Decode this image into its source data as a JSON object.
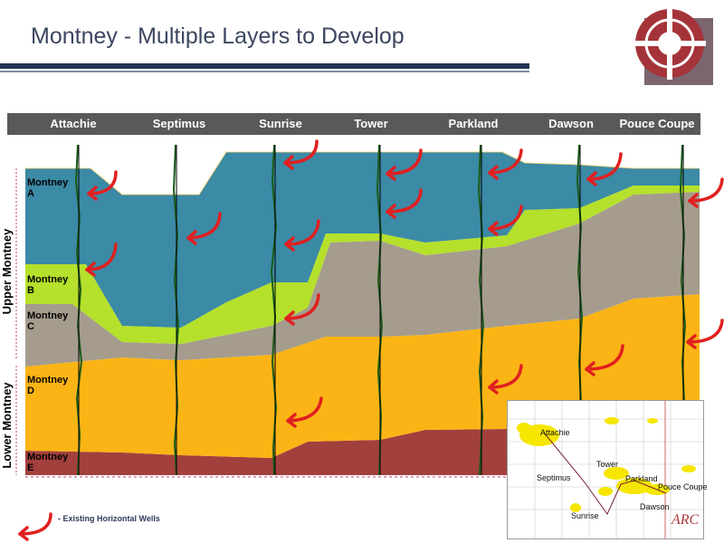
{
  "title": "Montney - Multiple Layers to Develop",
  "wells": [
    "Attachie",
    "Septimus",
    "Sunrise",
    "Tower",
    "Parkland",
    "Dawson",
    "Pouce Coupe"
  ],
  "zones": {
    "a": [
      "Montney",
      "A"
    ],
    "b": [
      "Montney",
      "B"
    ],
    "c": [
      "Montney",
      "C"
    ],
    "d": [
      "Montney",
      "D"
    ],
    "e": [
      "Montney",
      "E"
    ]
  },
  "groups": {
    "upper": "Upper Montney",
    "lower": "Lower Montney"
  },
  "legend": "- Existing Horizontal Wells",
  "map": {
    "labels": [
      "Attachie",
      "Tower",
      "Septimus",
      "Parkland",
      "Pouce Coupe",
      "Dawson",
      "Sunrise"
    ],
    "brand": "ARC"
  },
  "colors": {
    "zone_a": "#3b8aa6",
    "zone_b": "#b5e02b",
    "zone_c": "#a59c8d",
    "zone_d": "#fbb415",
    "zone_e": "#a2403d",
    "arrow": "#e02020",
    "log": "#1a5c1a"
  }
}
